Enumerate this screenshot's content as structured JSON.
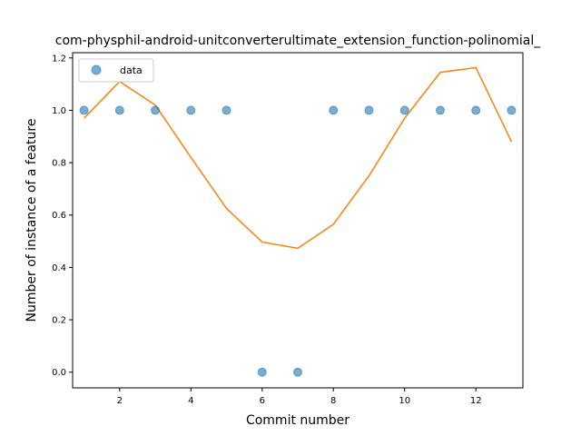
{
  "chart_data": {
    "type": "scatter",
    "title": "com-physphil-android-unitconverterultimate_extension_function-polinomial_",
    "xlabel": "Commit number",
    "ylabel": "Number of instance of a feature",
    "xlim": [
      0.68,
      13.32
    ],
    "ylim": [
      -0.06,
      1.22
    ],
    "xticks": [
      2,
      4,
      6,
      8,
      10,
      12
    ],
    "yticks": [
      0.0,
      0.2,
      0.4,
      0.6,
      0.8,
      1.0,
      1.2
    ],
    "xtick_labels": [
      "2",
      "4",
      "6",
      "8",
      "10",
      "12"
    ],
    "ytick_labels": [
      "0.0",
      "0.2",
      "0.4",
      "0.6",
      "0.8",
      "1.0",
      "1.2"
    ],
    "grid": false,
    "legend": {
      "placement": "upper-left",
      "entries": [
        "data"
      ]
    },
    "series": [
      {
        "name": "data",
        "kind": "scatter",
        "color": "#1f77b4",
        "x": [
          1,
          2,
          3,
          4,
          5,
          6,
          7,
          8,
          9,
          10,
          11,
          12,
          13
        ],
        "y": [
          1,
          1,
          1,
          1,
          1,
          0,
          0,
          1,
          1,
          1,
          1,
          1,
          1
        ]
      },
      {
        "kind": "line",
        "color": "#ff7f0e",
        "x": [
          1,
          2,
          3,
          4,
          5,
          6,
          7,
          8,
          9,
          10,
          11,
          12,
          13
        ],
        "y": [
          0.97,
          1.11,
          1.02,
          0.82,
          0.625,
          0.497,
          0.473,
          0.565,
          0.75,
          0.97,
          1.145,
          1.163,
          0.88
        ]
      }
    ]
  }
}
